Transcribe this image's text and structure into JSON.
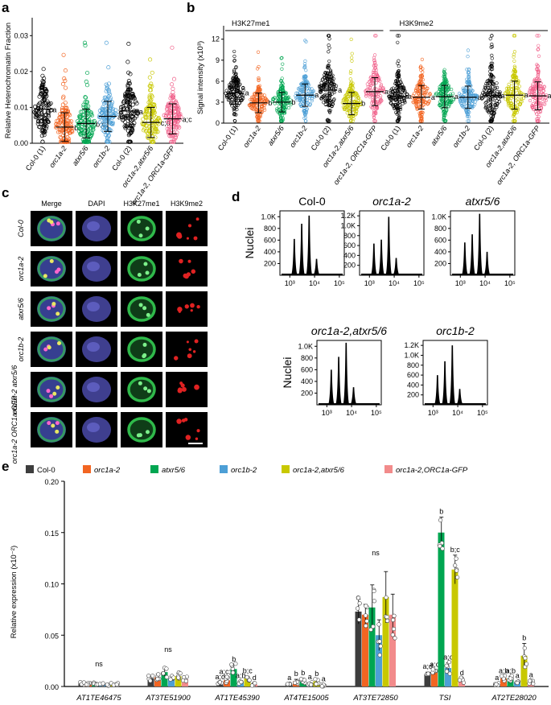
{
  "panels": {
    "a": "a",
    "b": "b",
    "c": "c",
    "d": "d",
    "e": "e"
  },
  "panel_a": {
    "ylabel": "Relative Heterochromatin Fraction",
    "yticks": [
      "0.00",
      "0.01",
      "0.02",
      "0.03"
    ],
    "groups": [
      {
        "label": "Col-0 (1)",
        "italic": false,
        "color": "#000000",
        "mean": 0.0095,
        "sd": 0.0045,
        "letter": "a"
      },
      {
        "label": "orc1a-2",
        "italic": true,
        "color": "#f26522",
        "mean": 0.0045,
        "sd": 0.004,
        "letter": "b"
      },
      {
        "label": "atxr5/6",
        "italic": true,
        "color": "#00a651",
        "mean": 0.0055,
        "sd": 0.004,
        "letter": "b;c"
      },
      {
        "label": "orc1b-2",
        "italic": true,
        "color": "#4d9fd6",
        "mean": 0.0075,
        "sd": 0.0042,
        "letter": "a;d"
      },
      {
        "label": "Col-0 (2)",
        "italic": false,
        "color": "#000000",
        "mean": 0.009,
        "sd": 0.0045,
        "letter": "a"
      },
      {
        "label": "orc1a-2,atxr5/6",
        "italic": true,
        "color": "#c8c800",
        "mean": 0.0058,
        "sd": 0.0042,
        "letter": "c;d"
      },
      {
        "label": "orc1a-2, ORC1a-GFP",
        "italic": true,
        "color": "#f0608a",
        "mean": 0.0068,
        "sd": 0.0042,
        "letter": "a;c"
      }
    ]
  },
  "panel_b": {
    "ylabel": "Signal intensity (x10³)",
    "yticks": [
      "0",
      "3",
      "6",
      "9",
      "12"
    ],
    "section_h3k27": "H3K27me1",
    "section_h3k9": "H3K9me2",
    "groups": [
      {
        "label": "Col-0 (1)",
        "italic": false,
        "color": "#000000",
        "mean": 4.3,
        "sd": 1.6,
        "letter": "a"
      },
      {
        "label": "orc1a-2",
        "italic": true,
        "color": "#f26522",
        "mean": 2.9,
        "sd": 1.4,
        "letter": "b"
      },
      {
        "label": "atxr5/6",
        "italic": true,
        "color": "#00a651",
        "mean": 3.0,
        "sd": 1.4,
        "letter": "b"
      },
      {
        "label": "orc1b-2",
        "italic": true,
        "color": "#4d9fd6",
        "mean": 4.0,
        "sd": 1.6,
        "letter": "a"
      },
      {
        "label": "Col-0 (2)",
        "italic": false,
        "color": "#000000",
        "mean": 4.7,
        "sd": 2.2,
        "letter": "a"
      },
      {
        "label": "orc1a-2,atxr5/6",
        "italic": true,
        "color": "#c8c800",
        "mean": 2.8,
        "sd": 1.6,
        "letter": "b"
      },
      {
        "label": "orc1a-2, ORC1a-GFP",
        "italic": true,
        "color": "#f0608a",
        "mean": 4.5,
        "sd": 2.0,
        "letter": "a"
      },
      {
        "label": "Col-0 (1)",
        "italic": false,
        "color": "#000000",
        "mean": 3.8,
        "sd": 1.7,
        "letter": "a"
      },
      {
        "label": "orc1a-2",
        "italic": true,
        "color": "#f26522",
        "mean": 3.7,
        "sd": 1.7,
        "letter": "a"
      },
      {
        "label": "atxr5/6",
        "italic": true,
        "color": "#00a651",
        "mean": 3.8,
        "sd": 1.6,
        "letter": "a"
      },
      {
        "label": "orc1b-2",
        "italic": true,
        "color": "#4d9fd6",
        "mean": 3.7,
        "sd": 1.6,
        "letter": "a"
      },
      {
        "label": "Col-0 (2)",
        "italic": false,
        "color": "#000000",
        "mean": 3.9,
        "sd": 2.2,
        "letter": "a"
      },
      {
        "label": "orc1a-2,atxr5/6",
        "italic": true,
        "color": "#c8c800",
        "mean": 4.0,
        "sd": 2.0,
        "letter": "a"
      },
      {
        "label": "orc1a-2, ORC1a-GFP",
        "italic": true,
        "color": "#f0608a",
        "mean": 3.9,
        "sd": 2.0,
        "letter": "a"
      }
    ]
  },
  "panel_c": {
    "columns": [
      "Merge",
      "DAPI",
      "H3K27me1",
      "H3K9me2"
    ],
    "rows": [
      "Col-0",
      "orc1a-2",
      "atxr5/6",
      "orc1b-2",
      "orc1a-2 atxr5/6",
      "orc1a-2 ORC1a-GFP"
    ]
  },
  "panel_d": {
    "ylabel": "Nuclei",
    "plots": [
      {
        "title": "Col-0",
        "italic": false,
        "yticks": [
          "200",
          "400",
          "600",
          "800",
          "1.0K"
        ],
        "ymax": 1100,
        "peaks": [
          620,
          880,
          1020,
          280
        ]
      },
      {
        "title": "orc1a-2",
        "italic": true,
        "yticks": [
          "200",
          "400",
          "600",
          "800",
          "1.0K",
          "1.2K"
        ],
        "ymax": 1300,
        "peaks": [
          640,
          720,
          1180,
          350
        ]
      },
      {
        "title": "atxr5/6",
        "italic": true,
        "yticks": [
          "200",
          "400",
          "600",
          "800",
          "1.0K"
        ],
        "ymax": 1100,
        "peaks": [
          560,
          700,
          1050,
          400
        ]
      },
      {
        "title": "orc1a-2,atxr5/6",
        "italic": true,
        "yticks": [
          "200",
          "400",
          "600",
          "800",
          "1.0K"
        ],
        "ymax": 1100,
        "peaks": [
          600,
          820,
          1060,
          300
        ]
      },
      {
        "title": "orc1b-2",
        "italic": true,
        "yticks": [
          "200",
          "400",
          "600",
          "800",
          "1.0K",
          "1.2K"
        ],
        "ymax": 1300,
        "peaks": [
          600,
          880,
          1200,
          320
        ]
      }
    ],
    "xticks": [
      "10³",
      "10⁴",
      "10⁵"
    ]
  },
  "chart_data": {
    "type": "bar",
    "ylabel": "Relative expression (x10⁻²)",
    "ylim": [
      0,
      0.2
    ],
    "yticks": [
      "0.00",
      "0.05",
      "0.10",
      "0.15",
      "0.20"
    ],
    "categories": [
      "AT1TE46475",
      "AT3TE51900",
      "AT1TE45390",
      "AT4TE15005",
      "AT3TE72850",
      "TSI",
      "AT2TE28020"
    ],
    "group_annotations": [
      "ns",
      "ns",
      "",
      "",
      "ns",
      "",
      ""
    ],
    "series": [
      {
        "name": "Col-0",
        "color": "#3d3d3d",
        "values": [
          0.003,
          0.008,
          0.003,
          0.002,
          0.073,
          0.012,
          0.002
        ],
        "err": [
          0.001,
          0.002,
          0.001,
          0.001,
          0.012,
          0.002,
          0.001
        ],
        "letters": [
          "",
          "",
          "a;d",
          "a",
          "",
          "a;d",
          "a"
        ]
      },
      {
        "name": "orc1a-2",
        "color": "#f26522",
        "values": [
          0.003,
          0.009,
          0.006,
          0.005,
          0.07,
          0.014,
          0.008
        ],
        "err": [
          0.001,
          0.003,
          0.003,
          0.002,
          0.01,
          0.002,
          0.002
        ],
        "letters": [
          "",
          "",
          "a;c;d",
          "b",
          "",
          "a;c",
          "a;b"
        ]
      },
      {
        "name": "atxr5/6",
        "color": "#00a651",
        "values": [
          0.003,
          0.014,
          0.017,
          0.006,
          0.077,
          0.15,
          0.008
        ],
        "err": [
          0.001,
          0.004,
          0.004,
          0.002,
          0.022,
          0.015,
          0.002
        ],
        "letters": [
          "",
          "",
          "b",
          "b",
          "",
          "b",
          "a;b"
        ]
      },
      {
        "name": "orc1b-2",
        "color": "#4d9fd6",
        "values": [
          0.002,
          0.008,
          0.004,
          0.003,
          0.05,
          0.018,
          0.004
        ],
        "err": [
          0.001,
          0.002,
          0.001,
          0.001,
          0.015,
          0.005,
          0.001
        ],
        "letters": [
          "",
          "",
          "a;b",
          "a",
          "",
          "a;c",
          "a"
        ]
      },
      {
        "name": "orc1a-2,atxr5/6",
        "color": "#c8c800",
        "values": [
          0.002,
          0.01,
          0.008,
          0.005,
          0.087,
          0.114,
          0.03
        ],
        "err": [
          0.001,
          0.003,
          0.002,
          0.002,
          0.025,
          0.014,
          0.012
        ],
        "letters": [
          "",
          "",
          "b;c",
          "b",
          "",
          "b;c",
          "b"
        ]
      },
      {
        "name": "orc1a-2,ORC1a-GFP",
        "color": "#f28b8b",
        "values": [
          0.002,
          0.007,
          0.002,
          0.001,
          0.07,
          0.006,
          0.004
        ],
        "err": [
          0.001,
          0.002,
          0.001,
          0.001,
          0.02,
          0.002,
          0.002
        ],
        "letters": [
          "",
          "",
          "d",
          "a",
          "",
          "d",
          "a"
        ]
      }
    ]
  }
}
